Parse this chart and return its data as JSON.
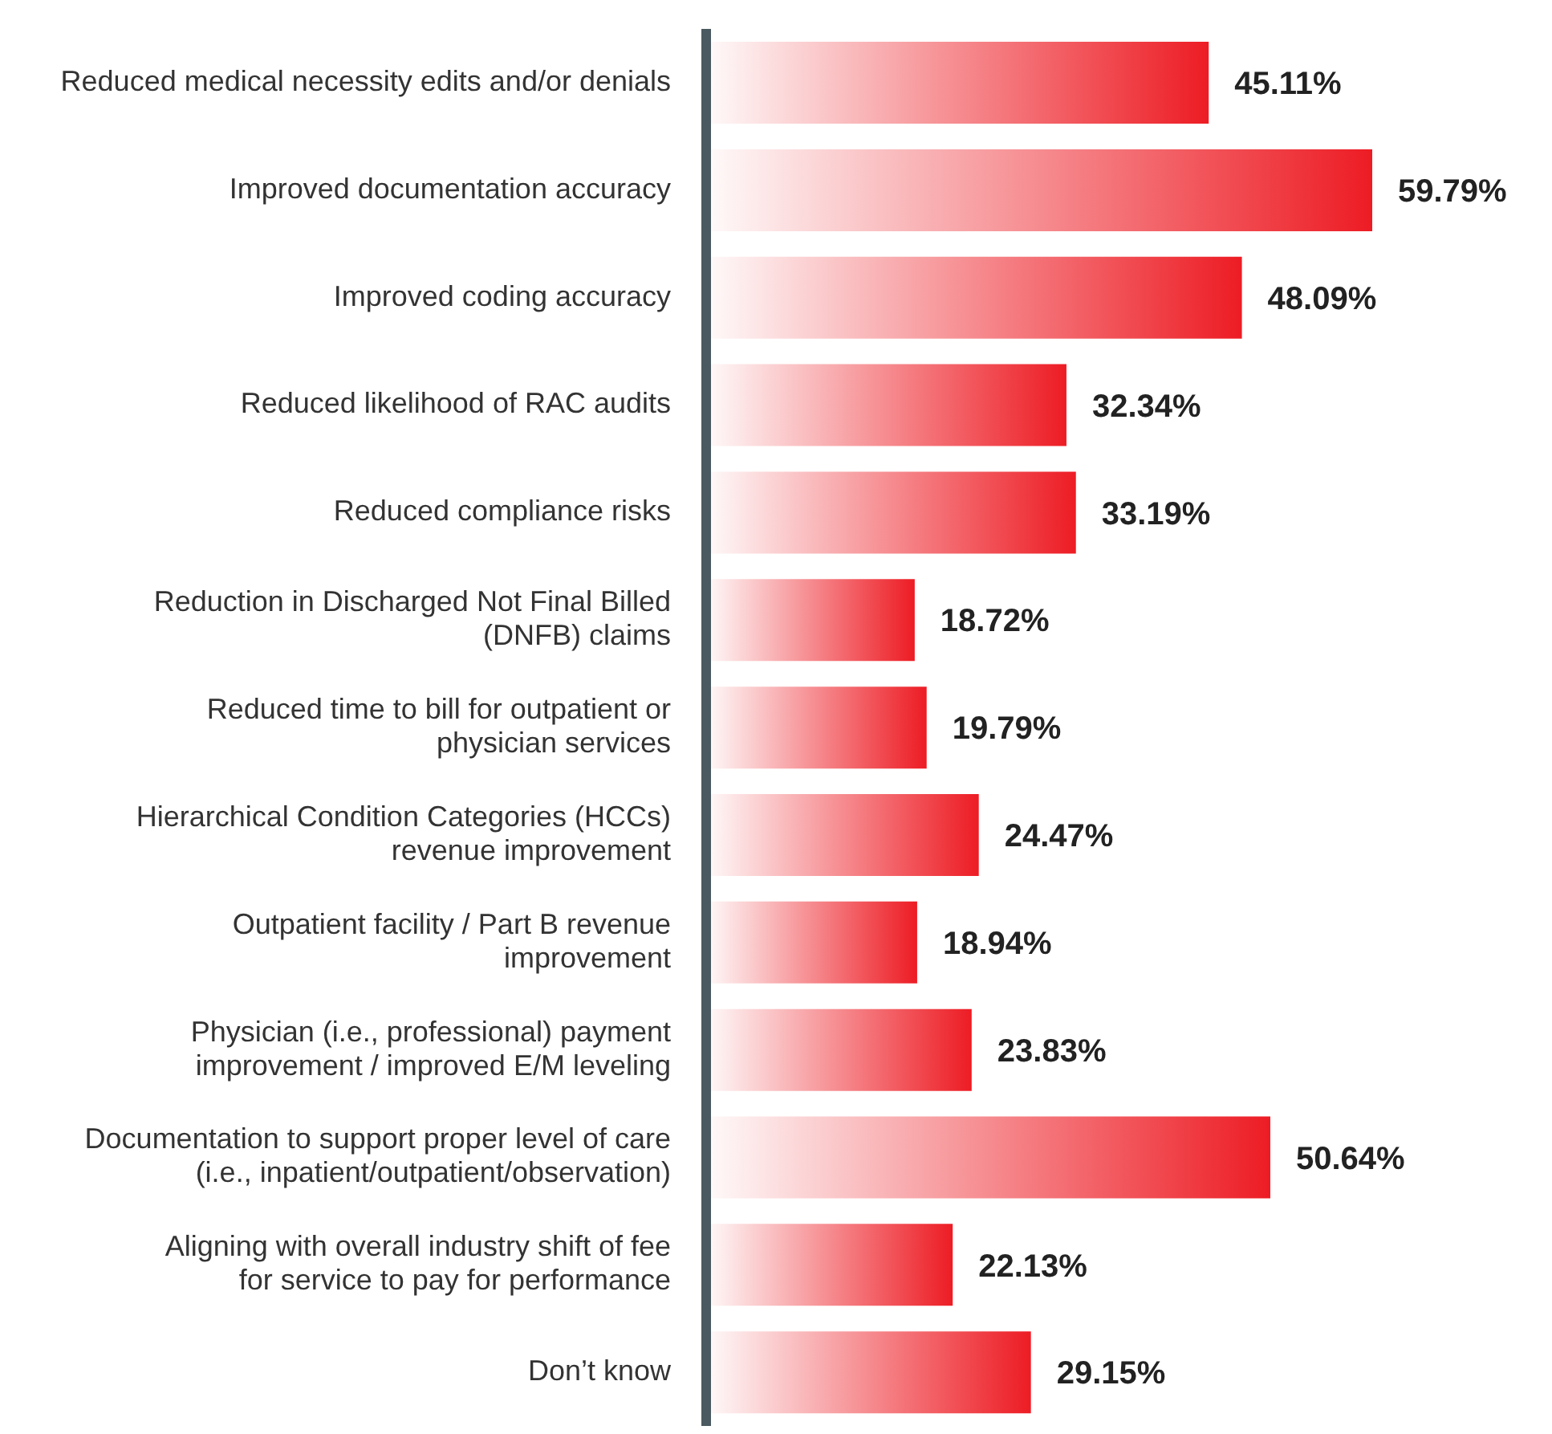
{
  "chart_data": {
    "type": "bar",
    "orientation": "horizontal",
    "categories": [
      "Reduced medical necessity edits and/or denials",
      "Improved documentation accuracy",
      "Improved coding accuracy",
      "Reduced likelihood of RAC audits",
      "Reduced compliance risks",
      "Reduction in Discharged Not Final Billed (DNFB) claims",
      "Reduced time to bill for outpatient or physician services",
      "Hierarchical Condition Categories (HCCs) revenue improvement",
      "Outpatient facility / Part B revenue improvement",
      "Physician (i.e., professional) payment improvement / improved E/M leveling",
      "Documentation to support proper level of care (i.e., inpatient/outpatient/observation)",
      "Aligning with overall industry shift of fee for service to pay for performance",
      "Don’t know"
    ],
    "values": [
      45.11,
      59.79,
      48.09,
      32.34,
      33.19,
      18.72,
      19.79,
      24.47,
      18.94,
      23.83,
      50.64,
      22.13,
      29.15
    ],
    "value_labels": [
      "45.11%",
      "59.79%",
      "48.09%",
      "32.34%",
      "33.19%",
      "18.72%",
      "19.79%",
      "24.47%",
      "18.94%",
      "23.83%",
      "50.64%",
      "22.13%",
      "29.15%"
    ],
    "color": "#ed1c24",
    "grid": false,
    "legend": false
  }
}
